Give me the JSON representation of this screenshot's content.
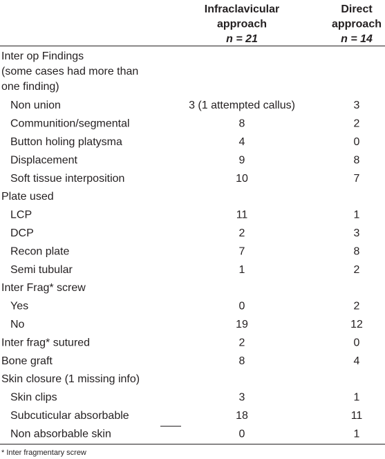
{
  "table": {
    "columns": [
      {
        "lines": [
          "Infraclavicular",
          "approach",
          "n = 21"
        ]
      },
      {
        "lines": [
          "Direct",
          "approach",
          "n = 14"
        ]
      }
    ],
    "sections": [
      {
        "label": [
          "Inter op Findings",
          "(some cases had more than",
          "one finding)"
        ],
        "items": [
          {
            "label": "Non union",
            "values": [
              "3 (1 attempted callus)",
              3
            ]
          },
          {
            "label": "Communition/segmental",
            "values": [
              8,
              2
            ]
          },
          {
            "label": "Button holing platysma",
            "values": [
              4,
              0
            ]
          },
          {
            "label": "Displacement",
            "values": [
              9,
              8
            ]
          },
          {
            "label": "Soft tissue interposition",
            "values": [
              10,
              7
            ]
          }
        ]
      },
      {
        "label": [
          "Plate used"
        ],
        "items": [
          {
            "label": "LCP",
            "values": [
              11,
              1
            ]
          },
          {
            "label": "DCP",
            "values": [
              2,
              3
            ]
          },
          {
            "label": "Recon plate",
            "values": [
              7,
              8
            ]
          },
          {
            "label": "Semi tubular",
            "values": [
              1,
              2
            ]
          }
        ]
      },
      {
        "label": [
          "Inter Frag* screw"
        ],
        "items": [
          {
            "label": "Yes",
            "values": [
              0,
              2
            ]
          },
          {
            "label": "No",
            "values": [
              19,
              12
            ]
          }
        ]
      },
      {
        "label": [
          "Inter frag* sutured"
        ],
        "values": [
          2,
          0
        ]
      },
      {
        "label": [
          "Bone graft"
        ],
        "values": [
          8,
          4
        ]
      },
      {
        "label": [
          "Skin closure (1 missing info)"
        ],
        "items": [
          {
            "label": "Skin clips",
            "values": [
              3,
              1
            ]
          },
          {
            "label": "Subcuticular absorbable",
            "values": [
              18,
              11
            ]
          },
          {
            "label": "Non absorbable skin",
            "values": [
              0,
              1
            ]
          }
        ]
      }
    ],
    "footnote": "* Inter fragmentary screw"
  }
}
